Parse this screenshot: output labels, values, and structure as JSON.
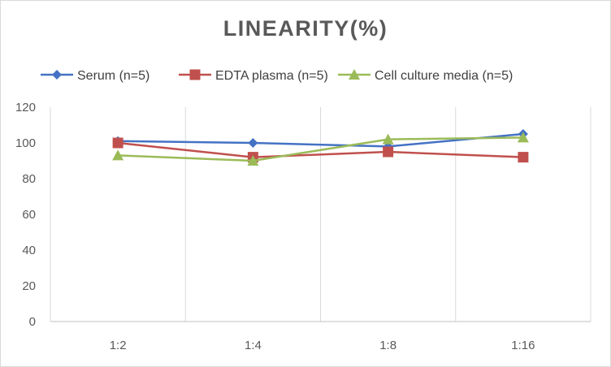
{
  "chart_data": {
    "type": "line",
    "title": "LINEARITY(%)",
    "categories": [
      "1:2",
      "1:4",
      "1:8",
      "1:16"
    ],
    "ylim": [
      0,
      120
    ],
    "yticks": [
      0,
      20,
      40,
      60,
      80,
      100,
      120
    ],
    "grid": "vertical",
    "legend": "top",
    "series": [
      {
        "name": "Serum (n=5)",
        "color": "#4472c4",
        "marker": "diamond",
        "values": [
          101,
          100,
          98,
          105
        ]
      },
      {
        "name": "EDTA plasma (n=5)",
        "color": "#c0504d",
        "marker": "square",
        "values": [
          100,
          92,
          95,
          92
        ]
      },
      {
        "name": "Cell culture media (n=5)",
        "color": "#9bbb59",
        "marker": "triangle",
        "values": [
          93,
          90,
          102,
          103
        ]
      }
    ]
  }
}
